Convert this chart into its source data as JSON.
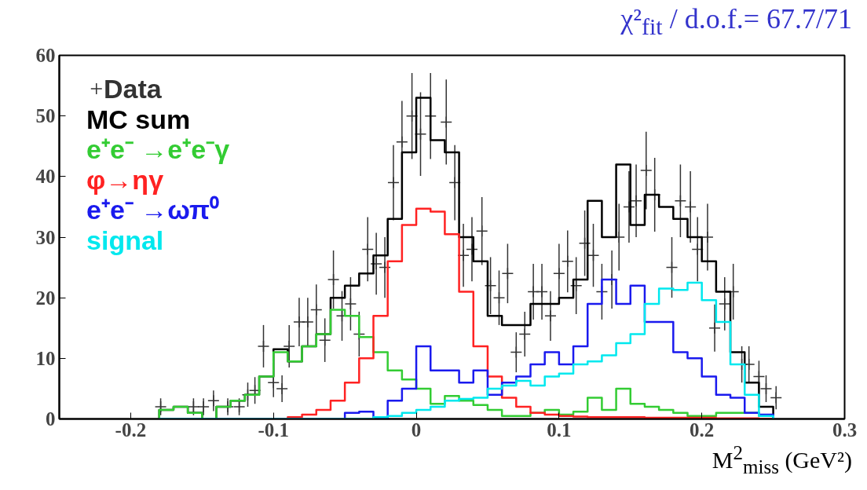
{
  "chart_data": {
    "type": "histogram",
    "xlabel": "M$^{2}$$_{miss}$ (GeV²)",
    "annotations": [
      "χ²$_{fit}$ / d.o.f.= 67.7/71"
    ],
    "bins": [
      -0.18,
      -0.17,
      -0.16,
      -0.15,
      -0.14,
      -0.13,
      -0.12,
      -0.11,
      -0.1,
      -0.09,
      -0.08,
      -0.07,
      -0.06,
      -0.05,
      -0.04,
      -0.03,
      -0.02,
      -0.01,
      0,
      0.01,
      0.02,
      0.03,
      0.04,
      0.05,
      0.06,
      0.07,
      0.08,
      0.09,
      0.1,
      0.11,
      0.12,
      0.13,
      0.14,
      0.15,
      0.16,
      0.17,
      0.18,
      0.19,
      0.2,
      0.21,
      0.22,
      0.23,
      0.24,
      0.25
    ],
    "xlim": [
      -0.25,
      0.3
    ],
    "xticks": [
      -0.2,
      -0.1,
      0,
      0.1,
      0.2,
      0.3
    ],
    "ylim": [
      0,
      60
    ],
    "yticks": [
      0,
      10,
      20,
      30,
      40,
      50,
      60
    ],
    "grid": false,
    "legend": "top left",
    "series": [
      {
        "name": "Data",
        "type": "scatter",
        "marker": "cross",
        "color": "#333333",
        "x": [
          -0.179,
          -0.156,
          -0.149,
          -0.142,
          -0.132,
          -0.124,
          -0.118,
          -0.113,
          -0.107,
          -0.1,
          -0.094,
          -0.089,
          -0.082,
          -0.076,
          -0.07,
          -0.064,
          -0.058,
          -0.052,
          -0.046,
          -0.04,
          -0.034,
          -0.028,
          -0.022,
          -0.016,
          -0.01,
          -0.003,
          0.003,
          0.01,
          0.021,
          0.027,
          0.033,
          0.039,
          0.046,
          0.052,
          0.058,
          0.064,
          0.07,
          0.076,
          0.082,
          0.088,
          0.094,
          0.1,
          0.106,
          0.112,
          0.118,
          0.124,
          0.13,
          0.137,
          0.142,
          0.149,
          0.154,
          0.161,
          0.167,
          0.179,
          0.185,
          0.192,
          0.197,
          0.204,
          0.209,
          0.216,
          0.222,
          0.228,
          0.233,
          0.24,
          0.245,
          0.252
        ],
        "values": [
          2,
          2,
          2,
          3,
          2,
          2,
          4,
          4.7,
          12,
          6,
          5,
          12,
          16,
          16,
          18,
          13,
          23,
          17,
          19,
          14,
          28,
          25.6,
          25,
          39,
          45.7,
          50,
          47,
          50,
          49,
          39,
          27,
          28,
          31,
          22,
          20,
          24,
          11,
          14,
          21,
          21,
          17,
          24,
          26,
          22,
          29,
          27,
          21,
          23,
          30,
          35,
          36,
          41,
          37,
          25,
          36,
          35,
          28,
          30,
          15,
          19,
          21,
          9,
          9,
          7,
          5,
          3.5
        ],
        "errors": [
          1.4,
          1.4,
          1.4,
          1.7,
          1.4,
          1.4,
          2,
          2.2,
          3.5,
          2.4,
          2.2,
          3.5,
          4,
          4,
          4.2,
          3.6,
          4.8,
          4.1,
          4.4,
          3.7,
          5.3,
          5.1,
          5,
          6.2,
          6.8,
          7.1,
          6.9,
          7.1,
          7,
          6.2,
          5.2,
          5.3,
          5.6,
          4.7,
          4.5,
          4.9,
          3.3,
          3.7,
          4.6,
          4.6,
          4.1,
          4.9,
          5.1,
          4.7,
          5.4,
          5.2,
          4.6,
          4.8,
          5.5,
          5.9,
          6,
          6.4,
          6.1,
          5,
          6,
          5.9,
          5.3,
          5.5,
          3.9,
          4.4,
          4.6,
          3,
          3,
          2.6,
          2.2,
          1.9
        ]
      },
      {
        "name": "MC sum",
        "color": "#000000",
        "values": [
          1.5,
          2,
          1,
          0,
          2,
          3,
          4,
          7,
          11.5,
          9.5,
          12,
          14,
          20,
          22,
          24,
          27,
          33,
          44,
          53,
          46,
          44,
          30,
          26,
          17,
          15.5,
          15.5,
          19,
          19,
          20,
          23,
          36,
          30,
          42,
          32,
          37,
          35,
          33,
          30,
          26,
          21,
          11,
          6,
          2
        ]
      },
      {
        "name": "e⁺e⁻ →e⁺e⁻γ",
        "color": "#33cc33",
        "values": [
          1.5,
          2,
          1,
          0,
          2,
          3,
          4,
          7,
          11,
          9.5,
          12,
          14,
          18,
          17,
          13.5,
          11,
          8,
          6.5,
          5,
          2.5,
          3.8,
          3,
          2.3,
          1.5,
          0.5,
          0.5,
          1,
          1.5,
          0.7,
          1.2,
          3.5,
          1.5,
          5,
          2.5,
          2,
          1.5,
          1,
          0.5,
          0.5,
          1,
          1,
          1,
          0.5
        ]
      },
      {
        "name": "φ→ηγ",
        "color": "#ff2222",
        "values": [
          0,
          0,
          0,
          0,
          0,
          0,
          0,
          0,
          0,
          0.3,
          0.7,
          1.5,
          3,
          6,
          10,
          17,
          26,
          32,
          34.7,
          34.2,
          30.5,
          21,
          12,
          7,
          3.5,
          2,
          1,
          0.7,
          0.5,
          0.4,
          0.3,
          0.3,
          0.3,
          0.3,
          0.2,
          0.2,
          0.2,
          0.2,
          0.2,
          0.1,
          0.1,
          0.1,
          0
        ]
      },
      {
        "name": "e⁺e⁻ →ωπ⁰",
        "color": "#1a1aee",
        "values": [
          0,
          0,
          0,
          0,
          0,
          0,
          0,
          0,
          0,
          0,
          0,
          0,
          0,
          1,
          1.2,
          0,
          3,
          5,
          12,
          8,
          8,
          6,
          8,
          4,
          6,
          7,
          9,
          11,
          9,
          12,
          19,
          23,
          19,
          22,
          16,
          16,
          11,
          10,
          7,
          4,
          3.5,
          1,
          0.7
        ]
      },
      {
        "name": "signal",
        "color": "#00e8ee",
        "values": [
          0,
          0,
          0,
          0,
          0,
          0,
          0,
          0,
          0,
          0,
          0,
          0,
          0,
          0,
          0,
          0.3,
          0.5,
          1,
          1.5,
          2,
          3,
          3.3,
          3.5,
          5,
          5.5,
          6.3,
          5.5,
          7,
          7.5,
          9,
          9.5,
          10.5,
          12.5,
          14,
          19,
          21.5,
          21.3,
          22.5,
          19.6,
          16,
          9,
          4,
          0.5
        ]
      }
    ]
  }
}
